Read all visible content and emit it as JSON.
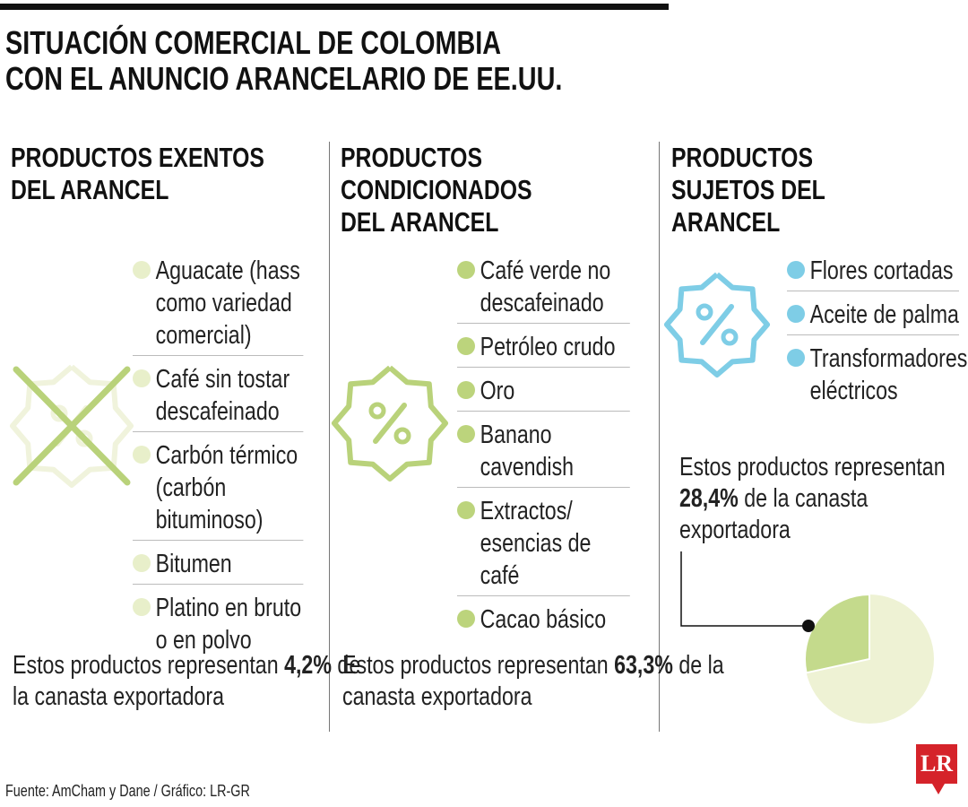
{
  "header": {
    "title_lines": [
      "SITUACIÓN COMERCIAL DE COLOMBIA",
      "CON EL ANUNCIO ARANCELARIO DE EE.UU."
    ]
  },
  "columns": [
    {
      "heading_lines": [
        "PRODUCTOS EXENTOS",
        "DEL ARANCEL"
      ],
      "items": [
        "Aguacate (hass como variedad comercial)",
        "Café sin tostar descafeinado",
        "Carbón térmico (carbón bituminoso)",
        "Bitumen",
        "Platino en bruto o en polvo"
      ],
      "summary": {
        "before": "Estos productos representan",
        "highlight": "4,2%",
        "after": "de la canasta exportadora"
      }
    },
    {
      "heading_lines": [
        "PRODUCTOS",
        "CONDICIONADOS",
        "DEL ARANCEL"
      ],
      "items": [
        "Café verde no descafeinado",
        "Petróleo crudo",
        "Oro",
        "Banano cavendish",
        "Extractos/ esencias de café",
        "Cacao básico"
      ],
      "summary": {
        "before": "Estos productos representan",
        "highlight": "63,3%",
        "after": "de la canasta exportadora"
      }
    },
    {
      "heading_lines": [
        "PRODUCTOS",
        "SUJETOS DEL",
        "ARANCEL"
      ],
      "items": [
        "Flores cortadas",
        "Aceite de palma",
        "Transformadores eléctricos"
      ],
      "summary": {
        "before": "Estos productos representan",
        "highlight": "28,4%",
        "after": "de la canasta exportadora"
      }
    }
  ],
  "pie": {
    "value": 28.4
  },
  "footer": {
    "source": "Fuente: AmCham y Dane / Gráfico: LR-GR",
    "logo": "LR"
  }
}
